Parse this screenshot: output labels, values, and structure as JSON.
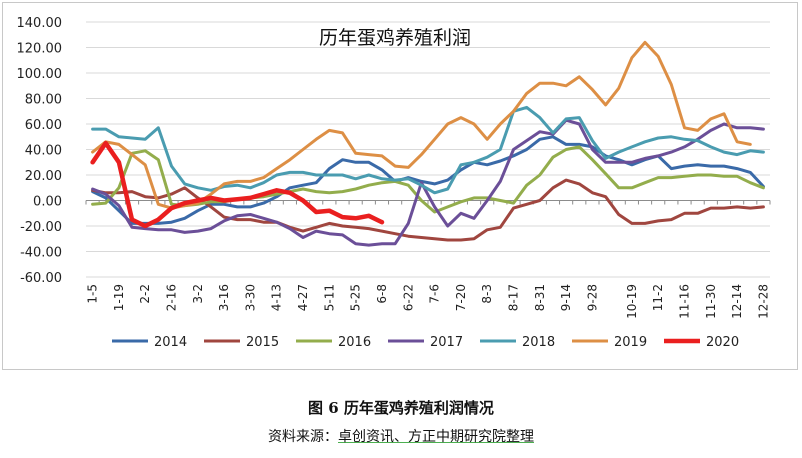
{
  "caption": "图 6  历年蛋鸡养殖利润情况",
  "source_prefix": "资料来源：",
  "source_body": "卓创资讯、方正中期研究院整理",
  "chart_data": {
    "type": "line",
    "title": "历年蛋鸡养殖利润",
    "xlabel": "",
    "ylabel": "",
    "ylim": [
      -60,
      140
    ],
    "yticks": [
      "140.00",
      "120.00",
      "100.00",
      "80.00",
      "60.00",
      "40.00",
      "20.00",
      "0.00",
      "-20.00",
      "-40.00",
      "-60.00"
    ],
    "ytick_values": [
      140,
      120,
      100,
      80,
      60,
      40,
      20,
      0,
      -20,
      -40,
      -60
    ],
    "grid": "horizontal",
    "legend": "bottom",
    "categories": [
      "1-5",
      "1-12",
      "1-19",
      "1-26",
      "2-2",
      "2-9",
      "2-16",
      "2-23",
      "3-2",
      "3-9",
      "3-16",
      "3-23",
      "3-30",
      "4-6",
      "4-13",
      "4-20",
      "4-27",
      "5-4",
      "5-11",
      "5-18",
      "5-25",
      "6-1",
      "6-8",
      "6-15",
      "6-22",
      "6-29",
      "7-6",
      "7-13",
      "7-20",
      "7-27",
      "8-3",
      "8-10",
      "8-17",
      "8-24",
      "8-31",
      "9-7",
      "9-14",
      "9-21",
      "9-28",
      "10-5",
      "10-12",
      "10-19",
      "10-26",
      "11-2",
      "11-9",
      "11-16",
      "11-23",
      "11-30",
      "12-7",
      "12-14",
      "12-21",
      "12-28"
    ],
    "xtick_labels": [
      "1-5",
      "1-19",
      "2-2",
      "2-16",
      "3-2",
      "3-16",
      "3-30",
      "4-13",
      "4-27",
      "5-11",
      "5-25",
      "6-8",
      "6-22",
      "7-6",
      "7-20",
      "8-3",
      "8-17",
      "8-31",
      "9-14",
      "9-28",
      "10-19",
      "11-2",
      "11-16",
      "11-30",
      "12-14",
      "12-28"
    ],
    "series": [
      {
        "name": "2014",
        "color": "#3a6aa8",
        "width": 3,
        "values": [
          7,
          2,
          -8,
          -18,
          -18,
          -18,
          -17,
          -14,
          -8,
          -3,
          -3,
          -5,
          -5,
          -2,
          3,
          10,
          12,
          14,
          25,
          32,
          30,
          30,
          24,
          15,
          18,
          15,
          13,
          16,
          24,
          30,
          28,
          31,
          35,
          40,
          48,
          50,
          44,
          44,
          42,
          35,
          32,
          28,
          32,
          35,
          25,
          27,
          28,
          27,
          27,
          25,
          22,
          11
        ]
      },
      {
        "name": "2015",
        "color": "#a0463f",
        "width": 3,
        "values": [
          8,
          6,
          6,
          7,
          3,
          2,
          5,
          10,
          2,
          -5,
          -13,
          -15,
          -15,
          -17,
          -17,
          -21,
          -24,
          -21,
          -18,
          -20,
          -21,
          -22,
          -24,
          -26,
          -28,
          -29,
          -30,
          -31,
          -31,
          -30,
          -23,
          -21,
          -6,
          -3,
          0,
          10,
          16,
          13,
          6,
          3,
          -11,
          -18,
          -18,
          -16,
          -15,
          -10,
          -10,
          -6,
          -6,
          -5,
          -6,
          -5
        ]
      },
      {
        "name": "2016",
        "color": "#93ad4c",
        "width": 3,
        "values": [
          -3,
          -2,
          10,
          37,
          39,
          32,
          -3,
          -4,
          -3,
          -1,
          -1,
          1,
          2,
          3,
          5,
          7,
          9,
          7,
          6,
          7,
          9,
          12,
          14,
          15,
          12,
          0,
          -9,
          -5,
          -1,
          2,
          2,
          0,
          -2,
          12,
          20,
          34,
          40,
          42,
          32,
          21,
          10,
          10,
          14,
          18,
          18,
          19,
          20,
          20,
          19,
          19,
          14,
          10
        ]
      },
      {
        "name": "2017",
        "color": "#6b4f98",
        "width": 3,
        "values": [
          9,
          5,
          -4,
          -21,
          -22,
          -23,
          -23,
          -25,
          -24,
          -22,
          -16,
          -12,
          -11,
          -14,
          -17,
          -22,
          -29,
          -24,
          -26,
          -27,
          -34,
          -35,
          -34,
          -34,
          -18,
          14,
          -5,
          -20,
          -10,
          -14,
          0,
          15,
          40,
          47,
          54,
          52,
          63,
          60,
          40,
          30,
          30,
          30,
          33,
          35,
          38,
          42,
          48,
          55,
          60,
          57,
          57,
          56
        ]
      },
      {
        "name": "2018",
        "color": "#4a9cb0",
        "width": 3,
        "values": [
          56,
          56,
          50,
          49,
          48,
          57,
          27,
          13,
          10,
          8,
          11,
          12,
          10,
          14,
          20,
          22,
          22,
          20,
          20,
          20,
          17,
          20,
          17,
          16,
          17,
          12,
          6,
          9,
          28,
          30,
          34,
          40,
          70,
          73,
          65,
          53,
          64,
          65,
          47,
          33,
          38,
          42,
          46,
          49,
          50,
          48,
          47,
          42,
          38,
          36,
          39,
          38
        ]
      },
      {
        "name": "2019",
        "color": "#dd8f45",
        "width": 3,
        "values": [
          38,
          46,
          44,
          36,
          28,
          -3,
          -6,
          -4,
          -2,
          5,
          13,
          15,
          15,
          18,
          25,
          32,
          40,
          48,
          55,
          53,
          37,
          36,
          35,
          27,
          26,
          36,
          48,
          60,
          65,
          60,
          48,
          60,
          70,
          84,
          92,
          92,
          90,
          97,
          87,
          75,
          88,
          112,
          124,
          113,
          91,
          57,
          55,
          64,
          68,
          46,
          44,
          null
        ]
      },
      {
        "name": "2020",
        "color": "#ea1f1f",
        "width": 4.5,
        "values": [
          30,
          45,
          30,
          -15,
          -20,
          -15,
          -6,
          -2,
          0,
          2,
          0,
          1,
          2,
          5,
          8,
          6,
          0,
          -9,
          -8,
          -13,
          -14,
          -12,
          -17,
          null,
          null,
          null,
          null,
          null,
          null,
          null,
          null,
          null,
          null,
          null,
          null,
          null,
          null,
          null,
          null,
          null,
          null,
          null,
          null,
          null,
          null,
          null,
          null,
          null,
          null,
          null,
          null,
          null
        ]
      }
    ]
  }
}
